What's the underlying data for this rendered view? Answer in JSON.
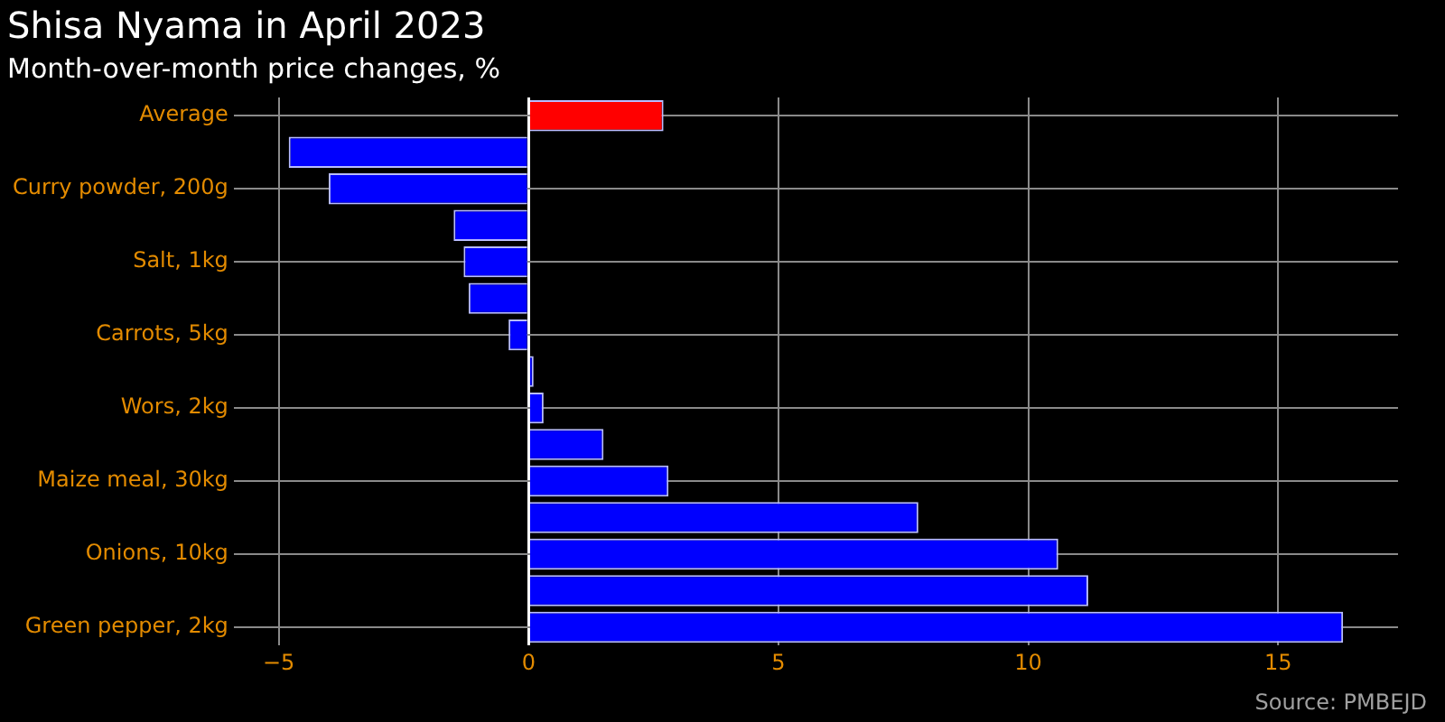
{
  "chart_data": {
    "type": "bar",
    "orientation": "horizontal",
    "title": "Shisa Nyama in April 2023",
    "subtitle": "Month-over-month price changes, %",
    "categories": [
      "Average",
      null,
      "Curry powder, 200g",
      null,
      "Salt, 1kg",
      null,
      "Carrots, 5kg",
      null,
      "Wors, 2kg",
      null,
      "Maize meal, 30kg",
      null,
      "Onions, 10kg",
      null,
      "Green pepper, 2kg"
    ],
    "values": [
      2.7,
      -4.8,
      -4.0,
      -1.5,
      -1.3,
      -1.2,
      -0.4,
      0.1,
      0.3,
      1.5,
      2.8,
      7.8,
      10.6,
      11.2,
      16.3
    ],
    "colors": [
      "#ff0000",
      "#0000ff",
      "#0000ff",
      "#0000ff",
      "#0000ff",
      "#0000ff",
      "#0000ff",
      "#0000ff",
      "#0000ff",
      "#0000ff",
      "#0000ff",
      "#0000ff",
      "#0000ff",
      "#0000ff",
      "#0000ff"
    ],
    "xlim": [
      -5.9,
      17.4
    ],
    "xticks": [
      {
        "value": -5,
        "label": "−5"
      },
      0,
      5,
      10,
      15
    ],
    "grid": true,
    "annotations": [
      "Source: PMBEJD"
    ]
  }
}
